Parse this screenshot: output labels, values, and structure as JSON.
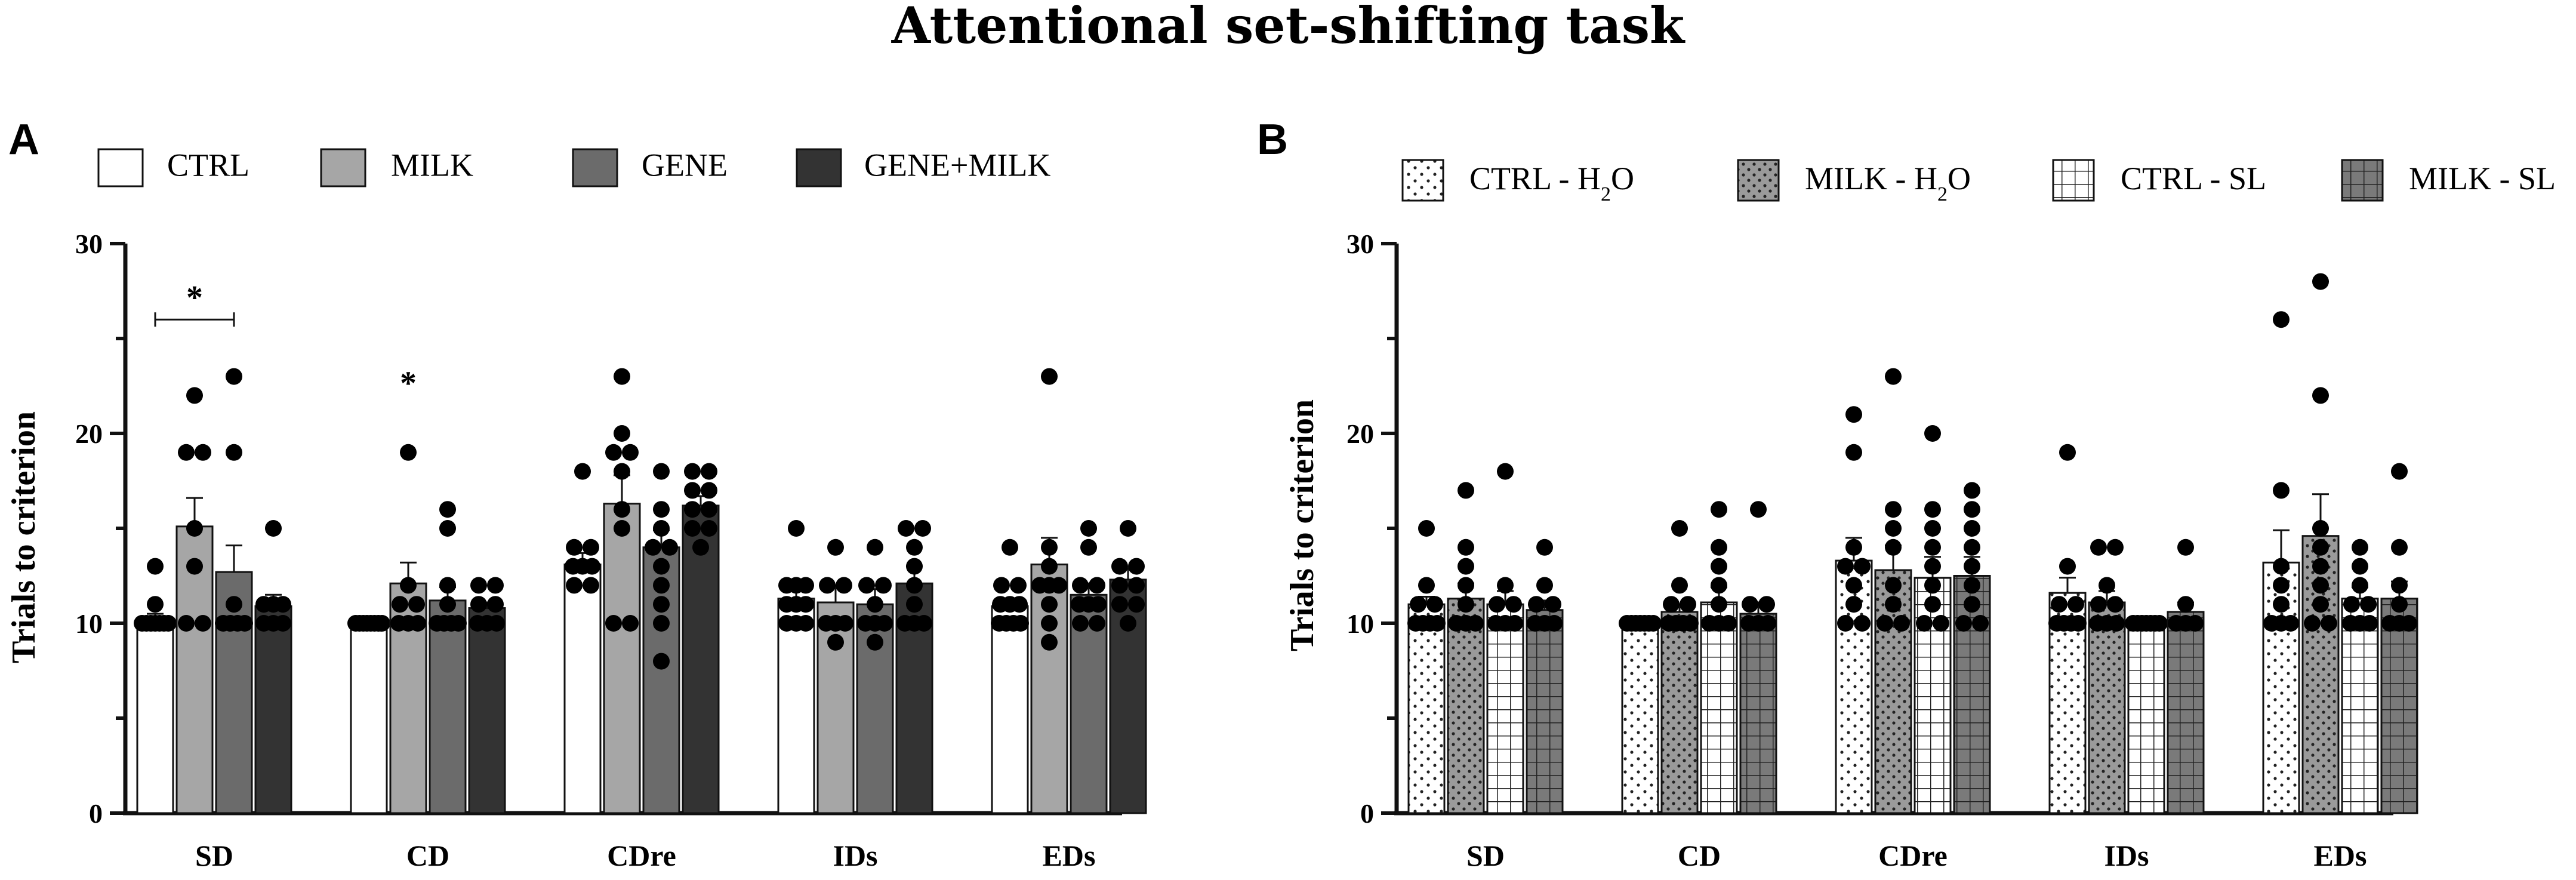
{
  "figure": {
    "title": "Attentional set-shifting task"
  },
  "chart_data": [
    {
      "panel": "A",
      "type": "bar",
      "title": "",
      "xlabel": "",
      "ylabel": "Trials to criterion",
      "ylim": [
        0,
        30
      ],
      "yticks": [
        "0",
        "10",
        "20",
        "30"
      ],
      "categories": [
        "SD",
        "CD",
        "CDre",
        "IDs",
        "EDs"
      ],
      "legend_position": "top",
      "series": [
        {
          "name": "CTRL",
          "legend": "CTRL",
          "color": "#ffffff",
          "pattern": "none",
          "values": [
            10.2,
            10.0,
            13.1,
            11.3,
            10.9
          ],
          "errors": [
            0.3,
            0.0,
            0.6,
            0.5,
            0.4
          ],
          "points": [
            [
              10,
              10,
              10,
              10,
              10,
              10,
              10,
              11,
              13
            ],
            [
              10,
              10,
              10,
              10,
              10,
              10,
              10,
              10
            ],
            [
              12,
              12,
              13,
              13,
              13,
              14,
              14,
              18
            ],
            [
              10,
              10,
              10,
              11,
              11,
              11,
              12,
              12,
              12,
              15
            ],
            [
              10,
              10,
              10,
              10,
              11,
              11,
              11,
              12,
              12,
              14
            ]
          ]
        },
        {
          "name": "MILK",
          "legend": "MILK",
          "color": "#a6a6a6",
          "pattern": "none",
          "values": [
            15.1,
            12.1,
            16.3,
            11.1,
            13.1
          ],
          "errors": [
            1.5,
            1.1,
            1.5,
            0.9,
            1.4
          ],
          "points": [
            [
              10,
              10,
              13,
              15,
              19,
              19,
              22
            ],
            [
              10,
              10,
              10,
              11,
              11,
              12,
              19
            ],
            [
              10,
              10,
              15,
              16,
              18,
              19,
              19,
              20,
              23
            ],
            [
              9,
              10,
              10,
              10,
              12,
              12,
              14
            ],
            [
              9,
              10,
              11,
              12,
              12,
              12,
              13,
              14,
              23
            ]
          ]
        },
        {
          "name": "GENE",
          "legend": "GENE",
          "color": "#6b6b6b",
          "pattern": "none",
          "values": [
            12.7,
            11.2,
            14.0,
            11.0,
            11.5
          ],
          "errors": [
            1.4,
            0.7,
            0.9,
            0.8,
            0.6
          ],
          "points": [
            [
              10,
              10,
              10,
              10,
              11,
              19,
              23
            ],
            [
              10,
              10,
              10,
              10,
              11,
              12,
              15,
              16
            ],
            [
              8,
              10,
              11,
              12,
              13,
              14,
              14,
              15,
              16,
              18
            ],
            [
              9,
              10,
              10,
              10,
              11,
              12,
              12,
              14
            ],
            [
              10,
              10,
              11,
              11,
              11,
              12,
              12,
              14,
              15
            ]
          ]
        },
        {
          "name": "GENE+MILK",
          "legend": "GENE+MILK",
          "color": "#333333",
          "pattern": "none",
          "values": [
            10.9,
            10.8,
            16.2,
            12.1,
            12.3
          ],
          "errors": [
            0.6,
            0.3,
            0.5,
            0.9,
            0.6
          ],
          "points": [
            [
              10,
              10,
              10,
              11,
              11,
              11,
              15
            ],
            [
              10,
              10,
              10,
              11,
              11,
              12,
              12
            ],
            [
              14,
              15,
              15,
              16,
              16,
              17,
              17,
              18,
              18
            ],
            [
              10,
              10,
              10,
              11,
              12,
              13,
              14,
              15,
              15
            ],
            [
              10,
              11,
              11,
              12,
              12,
              13,
              13,
              15
            ]
          ]
        }
      ],
      "annotations": [
        {
          "text": "*",
          "category": "SD",
          "from_series": 0,
          "to_series": 2,
          "y": 26,
          "bracket": true
        },
        {
          "text": "*",
          "category": "CD",
          "series": 1,
          "y": 23,
          "bracket": false
        }
      ]
    },
    {
      "panel": "B",
      "type": "bar",
      "title": "",
      "xlabel": "",
      "ylabel": "Trials to criterion",
      "ylim": [
        0,
        30
      ],
      "yticks": [
        "0",
        "10",
        "20",
        "30"
      ],
      "categories": [
        "SD",
        "CD",
        "CDre",
        "IDs",
        "EDs"
      ],
      "legend_position": "top",
      "series": [
        {
          "name": "CTRL - H2O",
          "legend": "CTRL - H",
          "legend_sub": "2",
          "legend_suffix": "O",
          "color": "#ffffff",
          "pattern": "dots-light",
          "values": [
            11.0,
            10.0,
            13.3,
            11.6,
            13.2
          ],
          "errors": [
            0.4,
            0.0,
            1.2,
            0.8,
            1.7
          ],
          "points": [
            [
              10,
              10,
              10,
              10,
              11,
              11,
              12,
              15
            ],
            [
              10,
              10,
              10,
              10,
              10,
              10,
              10
            ],
            [
              10,
              10,
              11,
              12,
              13,
              13,
              14,
              19,
              21
            ],
            [
              10,
              10,
              10,
              10,
              11,
              11,
              13,
              19
            ],
            [
              10,
              10,
              10,
              11,
              12,
              13,
              17,
              26
            ]
          ]
        },
        {
          "name": "MILK - H2O",
          "legend": "MILK - H",
          "legend_sub": "2",
          "legend_suffix": "O",
          "color": "#9a9a9a",
          "pattern": "dots-dark",
          "values": [
            11.3,
            10.6,
            12.8,
            11.1,
            14.6
          ],
          "errors": [
            0.8,
            0.4,
            1.3,
            0.6,
            2.2
          ],
          "points": [
            [
              10,
              10,
              10,
              11,
              12,
              13,
              14,
              17
            ],
            [
              10,
              10,
              10,
              10,
              11,
              11,
              12,
              15
            ],
            [
              10,
              10,
              11,
              12,
              14,
              15,
              16,
              23
            ],
            [
              10,
              10,
              10,
              11,
              11,
              12,
              14,
              14
            ],
            [
              10,
              10,
              11,
              12,
              13,
              14,
              15,
              22,
              28
            ]
          ]
        },
        {
          "name": "CTRL - SL",
          "legend": "CTRL - SL",
          "color": "#ffffff",
          "pattern": "grid",
          "values": [
            11.0,
            11.1,
            12.4,
            10.0,
            11.3
          ],
          "errors": [
            0.7,
            0.8,
            1.1,
            0.0,
            0.6
          ],
          "points": [
            [
              10,
              10,
              10,
              11,
              11,
              12,
              18
            ],
            [
              10,
              10,
              10,
              11,
              12,
              13,
              14,
              16
            ],
            [
              10,
              10,
              11,
              12,
              13,
              14,
              15,
              16,
              20
            ],
            [
              10,
              10,
              10,
              10,
              10,
              10,
              10
            ],
            [
              10,
              10,
              10,
              11,
              11,
              12,
              13,
              14
            ]
          ]
        },
        {
          "name": "MILK - SL",
          "legend": "MILK - SL",
          "color": "#7a7a7a",
          "pattern": "grid-dark",
          "values": [
            10.7,
            10.5,
            12.5,
            10.6,
            11.3
          ],
          "errors": [
            0.5,
            0.6,
            1.0,
            0.5,
            0.9
          ],
          "points": [
            [
              10,
              10,
              10,
              11,
              11,
              12,
              14
            ],
            [
              10,
              10,
              10,
              11,
              11,
              16
            ],
            [
              10,
              10,
              11,
              12,
              13,
              14,
              15,
              16,
              17
            ],
            [
              10,
              10,
              10,
              11,
              14
            ],
            [
              10,
              10,
              10,
              11,
              12,
              14,
              18
            ]
          ]
        }
      ],
      "annotations": []
    }
  ]
}
